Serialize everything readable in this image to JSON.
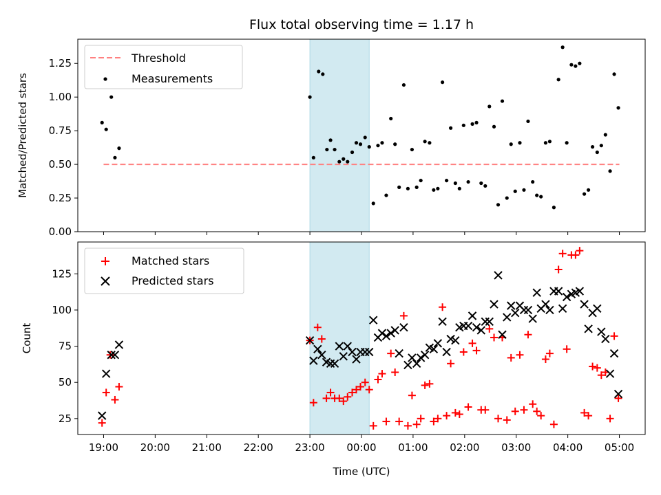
{
  "chart_data": [
    {
      "type": "scatter",
      "title": "Flux total observing time = 1.17 h",
      "ylabel": "Matched/Predicted stars",
      "ylim": [
        0,
        1.43
      ],
      "yticks": [
        "0.00",
        "0.25",
        "0.50",
        "0.75",
        "1.00",
        "1.25"
      ],
      "grid": false,
      "legend_placement": "top-left",
      "shaded_region": {
        "x_start": 23.0,
        "x_end": 24.15,
        "color": "#add8e6"
      },
      "threshold": {
        "name": "Threshold",
        "value": 0.5,
        "x_start": 19.0,
        "x_end": 29.0,
        "color": "#ff8080"
      },
      "series": [
        {
          "name": "Measurements",
          "color": "#000000",
          "points": [
            [
              18.97,
              0.81
            ],
            [
              19.05,
              0.76
            ],
            [
              19.15,
              1.0
            ],
            [
              19.22,
              0.55
            ],
            [
              19.3,
              0.62
            ],
            [
              23.0,
              1.0
            ],
            [
              23.07,
              0.55
            ],
            [
              23.17,
              1.19
            ],
            [
              23.25,
              1.17
            ],
            [
              23.33,
              0.61
            ],
            [
              23.4,
              0.68
            ],
            [
              23.48,
              0.61
            ],
            [
              23.57,
              0.52
            ],
            [
              23.65,
              0.54
            ],
            [
              23.73,
              0.52
            ],
            [
              23.82,
              0.59
            ],
            [
              23.9,
              0.66
            ],
            [
              23.98,
              0.65
            ],
            [
              24.07,
              0.7
            ],
            [
              24.15,
              0.63
            ],
            [
              24.23,
              0.21
            ],
            [
              24.32,
              0.64
            ],
            [
              24.4,
              0.66
            ],
            [
              24.48,
              0.27
            ],
            [
              24.57,
              0.84
            ],
            [
              24.65,
              0.65
            ],
            [
              24.73,
              0.33
            ],
            [
              24.82,
              1.09
            ],
            [
              24.9,
              0.32
            ],
            [
              24.98,
              0.61
            ],
            [
              25.07,
              0.33
            ],
            [
              25.15,
              0.38
            ],
            [
              25.23,
              0.67
            ],
            [
              25.32,
              0.66
            ],
            [
              25.4,
              0.31
            ],
            [
              25.48,
              0.32
            ],
            [
              25.57,
              1.11
            ],
            [
              25.65,
              0.38
            ],
            [
              25.73,
              0.77
            ],
            [
              25.82,
              0.36
            ],
            [
              25.9,
              0.32
            ],
            [
              25.98,
              0.79
            ],
            [
              26.07,
              0.37
            ],
            [
              26.15,
              0.8
            ],
            [
              26.23,
              0.81
            ],
            [
              26.32,
              0.36
            ],
            [
              26.4,
              0.34
            ],
            [
              26.48,
              0.93
            ],
            [
              26.57,
              0.78
            ],
            [
              26.65,
              0.2
            ],
            [
              26.73,
              0.97
            ],
            [
              26.82,
              0.25
            ],
            [
              26.9,
              0.65
            ],
            [
              26.98,
              0.3
            ],
            [
              27.07,
              0.66
            ],
            [
              27.15,
              0.31
            ],
            [
              27.23,
              0.82
            ],
            [
              27.32,
              0.37
            ],
            [
              27.4,
              0.27
            ],
            [
              27.48,
              0.26
            ],
            [
              27.57,
              0.66
            ],
            [
              27.65,
              0.67
            ],
            [
              27.73,
              0.18
            ],
            [
              27.82,
              1.13
            ],
            [
              27.9,
              1.37
            ],
            [
              27.98,
              0.66
            ],
            [
              28.07,
              1.24
            ],
            [
              28.15,
              1.23
            ],
            [
              28.23,
              1.25
            ],
            [
              28.32,
              0.28
            ],
            [
              28.4,
              0.31
            ],
            [
              28.48,
              0.63
            ],
            [
              28.57,
              0.59
            ],
            [
              28.65,
              0.64
            ],
            [
              28.73,
              0.72
            ],
            [
              28.82,
              0.45
            ],
            [
              28.9,
              1.17
            ],
            [
              28.98,
              0.92
            ]
          ]
        }
      ]
    },
    {
      "type": "scatter",
      "xlabel": "Time (UTC)",
      "ylabel": "Count",
      "ylim": [
        14,
        147
      ],
      "yticks": [
        "25",
        "50",
        "75",
        "100",
        "125"
      ],
      "xlim": [
        18.5,
        29.5
      ],
      "xticks": [
        "19:00",
        "20:00",
        "21:00",
        "22:00",
        "23:00",
        "00:00",
        "01:00",
        "02:00",
        "03:00",
        "04:00",
        "05:00"
      ],
      "grid": false,
      "legend_placement": "top-left",
      "shaded_region": {
        "x_start": 23.0,
        "x_end": 24.15,
        "color": "#add8e6"
      },
      "series": [
        {
          "name": "Matched stars",
          "marker": "plus",
          "color": "#ff0000",
          "points": [
            [
              18.97,
              22
            ],
            [
              19.05,
              43
            ],
            [
              19.13,
              69
            ],
            [
              19.22,
              38
            ],
            [
              19.3,
              47
            ],
            [
              23.0,
              79
            ],
            [
              23.07,
              36
            ],
            [
              23.15,
              88
            ],
            [
              23.23,
              80
            ],
            [
              23.32,
              39
            ],
            [
              23.4,
              43
            ],
            [
              23.48,
              39
            ],
            [
              23.57,
              39
            ],
            [
              23.65,
              37
            ],
            [
              23.73,
              40
            ],
            [
              23.82,
              43
            ],
            [
              23.9,
              45
            ],
            [
              23.98,
              47
            ],
            [
              24.07,
              50
            ],
            [
              24.15,
              45
            ],
            [
              24.23,
              20
            ],
            [
              24.32,
              52
            ],
            [
              24.4,
              56
            ],
            [
              24.48,
              23
            ],
            [
              24.57,
              70
            ],
            [
              24.65,
              57
            ],
            [
              24.73,
              23
            ],
            [
              24.82,
              96
            ],
            [
              24.9,
              20
            ],
            [
              24.98,
              41
            ],
            [
              25.07,
              21
            ],
            [
              25.15,
              25
            ],
            [
              25.23,
              48
            ],
            [
              25.32,
              49
            ],
            [
              25.4,
              23
            ],
            [
              25.48,
              25
            ],
            [
              25.57,
              102
            ],
            [
              25.65,
              27
            ],
            [
              25.73,
              63
            ],
            [
              25.82,
              29
            ],
            [
              25.9,
              28
            ],
            [
              25.98,
              71
            ],
            [
              26.07,
              33
            ],
            [
              26.15,
              77
            ],
            [
              26.23,
              72
            ],
            [
              26.32,
              31
            ],
            [
              26.4,
              31
            ],
            [
              26.48,
              87
            ],
            [
              26.57,
              81
            ],
            [
              26.65,
              25
            ],
            [
              26.73,
              81
            ],
            [
              26.82,
              24
            ],
            [
              26.9,
              67
            ],
            [
              26.98,
              30
            ],
            [
              27.07,
              69
            ],
            [
              27.15,
              31
            ],
            [
              27.23,
              83
            ],
            [
              27.32,
              35
            ],
            [
              27.4,
              30
            ],
            [
              27.48,
              27
            ],
            [
              27.57,
              66
            ],
            [
              27.65,
              70
            ],
            [
              27.73,
              21
            ],
            [
              27.82,
              128
            ],
            [
              27.9,
              139
            ],
            [
              27.98,
              73
            ],
            [
              28.07,
              138
            ],
            [
              28.15,
              138
            ],
            [
              28.23,
              141
            ],
            [
              28.32,
              29
            ],
            [
              28.4,
              27
            ],
            [
              28.48,
              61
            ],
            [
              28.57,
              60
            ],
            [
              28.65,
              55
            ],
            [
              28.73,
              57
            ],
            [
              28.82,
              25
            ],
            [
              28.9,
              82
            ],
            [
              28.98,
              39
            ]
          ]
        },
        {
          "name": "Predicted stars",
          "marker": "x",
          "color": "#000000",
          "points": [
            [
              18.97,
              27
            ],
            [
              19.05,
              56
            ],
            [
              19.15,
              69
            ],
            [
              19.22,
              69
            ],
            [
              19.3,
              76
            ],
            [
              23.0,
              79
            ],
            [
              23.07,
              65
            ],
            [
              23.15,
              73
            ],
            [
              23.23,
              69
            ],
            [
              23.32,
              64
            ],
            [
              23.4,
              63
            ],
            [
              23.48,
              63
            ],
            [
              23.57,
              75
            ],
            [
              23.65,
              68
            ],
            [
              23.73,
              75
            ],
            [
              23.82,
              71
            ],
            [
              23.9,
              66
            ],
            [
              23.98,
              71
            ],
            [
              24.07,
              71
            ],
            [
              24.15,
              71
            ],
            [
              24.23,
              93
            ],
            [
              24.32,
              81
            ],
            [
              24.4,
              84
            ],
            [
              24.48,
              82
            ],
            [
              24.57,
              84
            ],
            [
              24.65,
              86
            ],
            [
              24.73,
              70
            ],
            [
              24.82,
              88
            ],
            [
              24.9,
              62
            ],
            [
              24.98,
              67
            ],
            [
              25.07,
              63
            ],
            [
              25.15,
              67
            ],
            [
              25.23,
              69
            ],
            [
              25.32,
              74
            ],
            [
              25.4,
              73
            ],
            [
              25.48,
              77
            ],
            [
              25.57,
              92
            ],
            [
              25.65,
              71
            ],
            [
              25.73,
              80
            ],
            [
              25.82,
              79
            ],
            [
              25.9,
              88
            ],
            [
              25.98,
              89
            ],
            [
              26.07,
              89
            ],
            [
              26.15,
              96
            ],
            [
              26.23,
              88
            ],
            [
              26.32,
              86
            ],
            [
              26.4,
              92
            ],
            [
              26.48,
              92
            ],
            [
              26.57,
              104
            ],
            [
              26.65,
              124
            ],
            [
              26.73,
              83
            ],
            [
              26.82,
              95
            ],
            [
              26.9,
              103
            ],
            [
              26.98,
              98
            ],
            [
              27.07,
              103
            ],
            [
              27.15,
              100
            ],
            [
              27.23,
              100
            ],
            [
              27.32,
              94
            ],
            [
              27.4,
              112
            ],
            [
              27.48,
              101
            ],
            [
              27.57,
              104
            ],
            [
              27.65,
              100
            ],
            [
              27.73,
              113
            ],
            [
              27.82,
              113
            ],
            [
              27.9,
              101
            ],
            [
              27.98,
              109
            ],
            [
              28.07,
              111
            ],
            [
              28.15,
              112
            ],
            [
              28.23,
              113
            ],
            [
              28.32,
              104
            ],
            [
              28.4,
              87
            ],
            [
              28.48,
              98
            ],
            [
              28.57,
              101
            ],
            [
              28.65,
              85
            ],
            [
              28.73,
              80
            ],
            [
              28.82,
              56
            ],
            [
              28.9,
              70
            ],
            [
              28.98,
              42
            ]
          ]
        }
      ]
    }
  ]
}
